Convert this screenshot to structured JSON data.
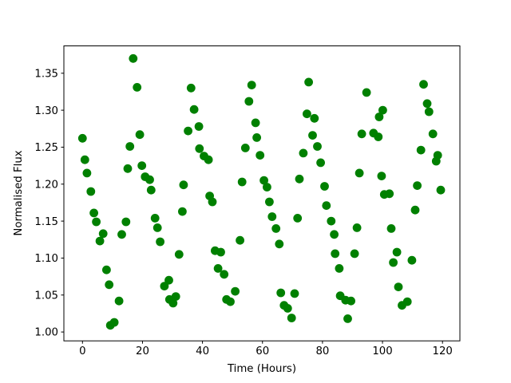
{
  "chart_data": {
    "type": "scatter",
    "title": "",
    "xlabel": "Time (Hours)",
    "ylabel": "Normalised Flux",
    "x_ticks": [
      0,
      20,
      40,
      60,
      80,
      100,
      120
    ],
    "x_tick_labels": [
      "0",
      "20",
      "40",
      "60",
      "80",
      "100",
      "120"
    ],
    "y_ticks": [
      1.0,
      1.05,
      1.1,
      1.15,
      1.2,
      1.25,
      1.3,
      1.35
    ],
    "y_tick_labels": [
      "1.00",
      "1.05",
      "1.10",
      "1.15",
      "1.20",
      "1.25",
      "1.30",
      "1.35"
    ],
    "xlim": [
      -6.2,
      125.8
    ],
    "ylim": [
      0.988,
      1.387
    ],
    "grid": false,
    "legend": null,
    "marker": {
      "shape": "circle",
      "color": "#008000",
      "radius_px": 5.4
    },
    "axis_color": "#000000",
    "background_color": "#ffffff",
    "series": [
      {
        "name": "normalised-flux-vs-time",
        "points": [
          [
            0.0,
            1.262
          ],
          [
            0.8,
            1.233
          ],
          [
            1.5,
            1.215
          ],
          [
            2.8,
            1.19
          ],
          [
            3.8,
            1.161
          ],
          [
            4.6,
            1.149
          ],
          [
            5.8,
            1.123
          ],
          [
            6.9,
            1.133
          ],
          [
            8.0,
            1.084
          ],
          [
            8.9,
            1.064
          ],
          [
            9.3,
            1.009
          ],
          [
            10.6,
            1.013
          ],
          [
            12.2,
            1.042
          ],
          [
            13.1,
            1.132
          ],
          [
            14.5,
            1.149
          ],
          [
            15.1,
            1.221
          ],
          [
            15.8,
            1.251
          ],
          [
            16.9,
            1.37
          ],
          [
            18.2,
            1.331
          ],
          [
            19.1,
            1.267
          ],
          [
            19.8,
            1.225
          ],
          [
            20.9,
            1.21
          ],
          [
            22.4,
            1.206
          ],
          [
            22.9,
            1.192
          ],
          [
            24.2,
            1.154
          ],
          [
            25.0,
            1.141
          ],
          [
            25.9,
            1.122
          ],
          [
            27.3,
            1.062
          ],
          [
            28.8,
            1.07
          ],
          [
            29.0,
            1.044
          ],
          [
            30.2,
            1.039
          ],
          [
            31.1,
            1.048
          ],
          [
            32.2,
            1.105
          ],
          [
            33.3,
            1.163
          ],
          [
            33.7,
            1.199
          ],
          [
            35.2,
            1.272
          ],
          [
            36.2,
            1.33
          ],
          [
            37.2,
            1.301
          ],
          [
            38.8,
            1.278
          ],
          [
            39.0,
            1.248
          ],
          [
            40.5,
            1.238
          ],
          [
            42.0,
            1.233
          ],
          [
            42.4,
            1.184
          ],
          [
            43.3,
            1.176
          ],
          [
            44.2,
            1.11
          ],
          [
            46.1,
            1.108
          ],
          [
            45.2,
            1.086
          ],
          [
            47.2,
            1.078
          ],
          [
            48.0,
            1.044
          ],
          [
            49.3,
            1.041
          ],
          [
            50.9,
            1.055
          ],
          [
            52.5,
            1.124
          ],
          [
            53.2,
            1.203
          ],
          [
            54.3,
            1.249
          ],
          [
            55.5,
            1.312
          ],
          [
            56.4,
            1.334
          ],
          [
            57.7,
            1.283
          ],
          [
            58.1,
            1.263
          ],
          [
            59.2,
            1.239
          ],
          [
            60.5,
            1.205
          ],
          [
            61.5,
            1.196
          ],
          [
            62.3,
            1.176
          ],
          [
            63.2,
            1.156
          ],
          [
            64.5,
            1.14
          ],
          [
            65.6,
            1.119
          ],
          [
            66.1,
            1.053
          ],
          [
            67.2,
            1.036
          ],
          [
            68.4,
            1.032
          ],
          [
            69.7,
            1.019
          ],
          [
            70.7,
            1.052
          ],
          [
            71.7,
            1.154
          ],
          [
            72.3,
            1.207
          ],
          [
            73.6,
            1.242
          ],
          [
            74.8,
            1.295
          ],
          [
            75.4,
            1.338
          ],
          [
            76.7,
            1.266
          ],
          [
            77.3,
            1.289
          ],
          [
            78.3,
            1.251
          ],
          [
            79.4,
            1.229
          ],
          [
            80.7,
            1.197
          ],
          [
            81.3,
            1.171
          ],
          [
            82.9,
            1.15
          ],
          [
            83.9,
            1.132
          ],
          [
            84.2,
            1.106
          ],
          [
            85.6,
            1.086
          ],
          [
            85.9,
            1.049
          ],
          [
            87.7,
            1.043
          ],
          [
            89.5,
            1.042
          ],
          [
            88.4,
            1.018
          ],
          [
            90.7,
            1.106
          ],
          [
            91.5,
            1.141
          ],
          [
            92.3,
            1.215
          ],
          [
            93.1,
            1.268
          ],
          [
            94.7,
            1.324
          ],
          [
            97.0,
            1.269
          ],
          [
            98.6,
            1.264
          ],
          [
            98.9,
            1.291
          ],
          [
            100.1,
            1.3
          ],
          [
            99.7,
            1.211
          ],
          [
            100.6,
            1.186
          ],
          [
            102.3,
            1.187
          ],
          [
            102.9,
            1.14
          ],
          [
            103.6,
            1.094
          ],
          [
            104.8,
            1.108
          ],
          [
            105.3,
            1.061
          ],
          [
            106.5,
            1.036
          ],
          [
            108.3,
            1.041
          ],
          [
            109.8,
            1.097
          ],
          [
            110.9,
            1.165
          ],
          [
            111.6,
            1.198
          ],
          [
            112.8,
            1.246
          ],
          [
            113.7,
            1.335
          ],
          [
            114.9,
            1.309
          ],
          [
            115.5,
            1.298
          ],
          [
            116.8,
            1.268
          ],
          [
            117.9,
            1.231
          ],
          [
            118.4,
            1.239
          ],
          [
            119.4,
            1.192
          ]
        ]
      }
    ]
  }
}
